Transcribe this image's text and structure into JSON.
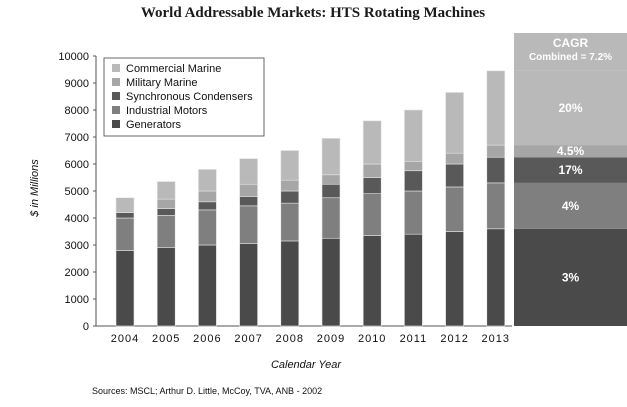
{
  "chart_data": {
    "type": "bar",
    "stacked": true,
    "title": "World Addressable Markets: HTS Rotating Machines",
    "xlabel": "Calendar Year",
    "ylabel": "$ in Millions",
    "ylim": [
      0,
      10000
    ],
    "yticks": [
      "0",
      "1000",
      "2000",
      "3000",
      "4000",
      "5000",
      "6000",
      "7000",
      "8000",
      "9000",
      "10000"
    ],
    "categories": [
      "2004",
      "2005",
      "2006",
      "2007",
      "2008",
      "2009",
      "2010",
      "2011",
      "2012",
      "2013"
    ],
    "series": [
      {
        "name": "Generators",
        "color": "#4a4a4a",
        "values": [
          2800,
          2900,
          3000,
          3050,
          3150,
          3250,
          3350,
          3400,
          3500,
          3600
        ]
      },
      {
        "name": "Industrial Motors",
        "color": "#7f7f7f",
        "values": [
          1200,
          1200,
          1300,
          1400,
          1400,
          1500,
          1550,
          1600,
          1650,
          1700
        ]
      },
      {
        "name": "Synchronous Condensers",
        "color": "#595959",
        "values": [
          200,
          250,
          300,
          350,
          450,
          500,
          600,
          750,
          850,
          950
        ]
      },
      {
        "name": "Military Marine",
        "color": "#a6a6a6",
        "values": [
          0,
          350,
          400,
          450,
          400,
          350,
          500,
          350,
          400,
          450
        ]
      },
      {
        "name": "Commercial Marine",
        "color": "#b9b9b9",
        "values": [
          550,
          650,
          800,
          950,
          1100,
          1350,
          1600,
          1900,
          2250,
          2750
        ]
      }
    ],
    "legend": {
      "placement": "top-left",
      "entries": [
        "Commercial Marine",
        "Military Marine",
        "Synchronous Condensers",
        "Industrial Motors",
        "Generators"
      ]
    },
    "cagr_panel": {
      "title": "CAGR",
      "subtitle": "Combined = 7.2%",
      "labels": [
        {
          "series": "Generators",
          "text": "3%"
        },
        {
          "series": "Industrial Motors",
          "text": "4%"
        },
        {
          "series": "Synchronous Condensers",
          "text": "17%"
        },
        {
          "series": "Military Marine",
          "text": "4.5%"
        },
        {
          "series": "Commercial Marine",
          "text": "20%"
        }
      ]
    },
    "source": "Sources:  MSCL; Arthur D. Little, McCoy, TVA, ANB - 2002"
  }
}
